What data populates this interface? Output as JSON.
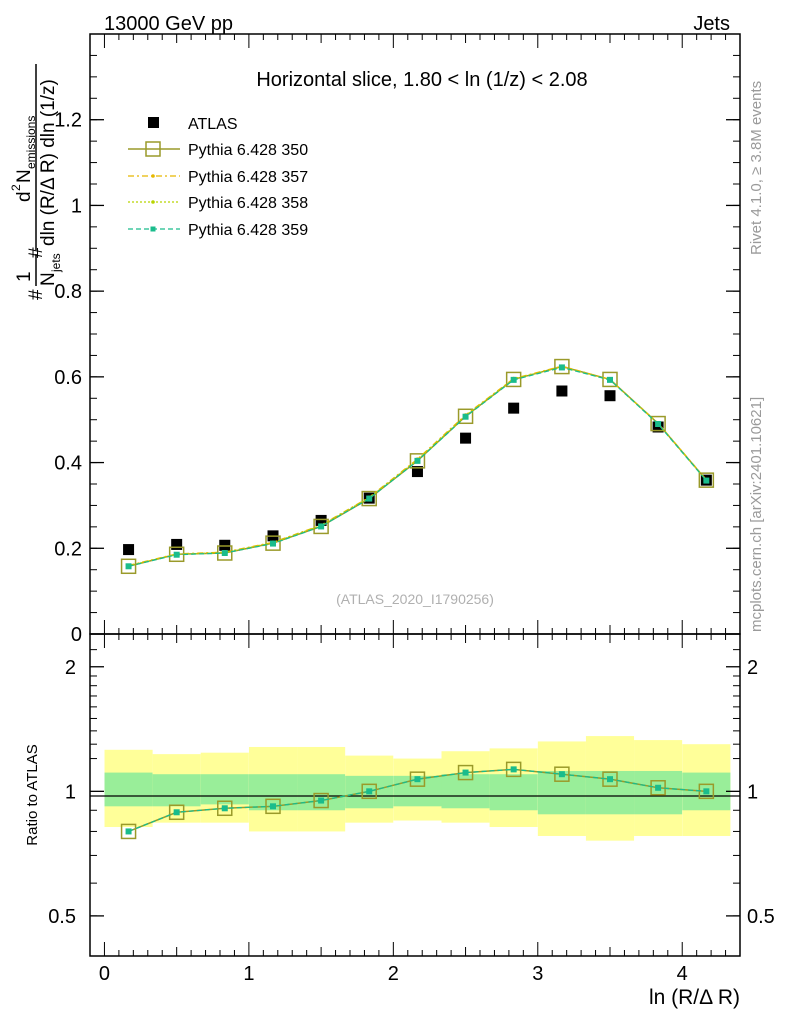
{
  "header": {
    "left": "13000 GeV pp",
    "right": "Jets"
  },
  "side": {
    "rivet": "Rivet 4.1.0, ≥ 3.8M events",
    "mcplots": "mcplots.cern.ch [arXiv:2401.10621]"
  },
  "chart_data": [
    {
      "type": "scatter",
      "title": "Horizontal slice, 1.80 < ln (1/z) < 2.08",
      "watermark": "(ATLAS_2020_I1790256)",
      "ylabel_parts": {
        "hash1": "#",
        "one": "1",
        "njets": "N",
        "jets_sub": "jets",
        "d2": "d",
        "sup2": "2",
        "nem": "N",
        "em_sub": "emissions",
        "hash2": "#",
        "denom": "dln (R/Δ R) dln (1/z)"
      },
      "xlabel": "ln (R/Δ R)",
      "xlim": [
        -0.1,
        4.4
      ],
      "ylim": [
        0,
        1.4
      ],
      "xticks": [
        "0",
        "1",
        "2",
        "3",
        "4"
      ],
      "yticks": [
        "0",
        "0.2",
        "0.4",
        "0.6",
        "0.8",
        "1",
        "1.2"
      ],
      "x": [
        0.167,
        0.5,
        0.833,
        1.167,
        1.5,
        1.833,
        2.167,
        2.5,
        2.833,
        3.167,
        3.5,
        3.833,
        4.167
      ],
      "series": [
        {
          "name": "ATLAS",
          "color": "#000000",
          "marker": "square",
          "values": [
            0.197,
            0.209,
            0.207,
            0.229,
            0.265,
            0.317,
            0.379,
            0.457,
            0.527,
            0.567,
            0.556,
            0.483,
            0.359
          ]
        },
        {
          "name": "Pythia 6.428 350",
          "color": "#9a9a2a",
          "marker": "open-square",
          "values": [
            0.158,
            0.186,
            0.189,
            0.212,
            0.251,
            0.316,
            0.404,
            0.508,
            0.594,
            0.624,
            0.594,
            0.491,
            0.359
          ]
        },
        {
          "name": "Pythia 6.428 357",
          "color": "#e6b800",
          "marker": "dot",
          "values": [
            0.16,
            0.187,
            0.191,
            0.214,
            0.254,
            0.319,
            0.408,
            0.511,
            0.596,
            0.625,
            0.594,
            0.492,
            0.36
          ]
        },
        {
          "name": "Pythia 6.428 358",
          "color": "#b8d400",
          "marker": "dot",
          "values": [
            0.159,
            0.186,
            0.19,
            0.213,
            0.253,
            0.318,
            0.406,
            0.509,
            0.595,
            0.623,
            0.593,
            0.491,
            0.359
          ]
        },
        {
          "name": "Pythia 6.428 359",
          "color": "#1abc8c",
          "marker": "small-square",
          "values": [
            0.158,
            0.185,
            0.189,
            0.211,
            0.251,
            0.316,
            0.404,
            0.507,
            0.593,
            0.622,
            0.593,
            0.49,
            0.358
          ]
        }
      ]
    },
    {
      "type": "scatter",
      "ylabel": "Ratio to ATLAS",
      "yscale": "log",
      "ylim": [
        0.4,
        2.4
      ],
      "yticks": [
        "0.5",
        "1",
        "2"
      ],
      "x": [
        0.167,
        0.5,
        0.833,
        1.167,
        1.5,
        1.833,
        2.167,
        2.5,
        2.833,
        3.167,
        3.5,
        3.833,
        4.167
      ],
      "band_inner": [
        [
          0.92,
          1.11
        ],
        [
          0.92,
          1.1
        ],
        [
          0.93,
          1.1
        ],
        [
          0.9,
          1.1
        ],
        [
          0.9,
          1.1
        ],
        [
          0.91,
          1.09
        ],
        [
          0.92,
          1.09
        ],
        [
          0.91,
          1.1
        ],
        [
          0.9,
          1.1
        ],
        [
          0.88,
          1.12
        ],
        [
          0.88,
          1.12
        ],
        [
          0.88,
          1.12
        ],
        [
          0.9,
          1.11
        ]
      ],
      "band_outer": [
        [
          0.82,
          1.26
        ],
        [
          0.84,
          1.23
        ],
        [
          0.84,
          1.24
        ],
        [
          0.8,
          1.28
        ],
        [
          0.8,
          1.28
        ],
        [
          0.84,
          1.22
        ],
        [
          0.85,
          1.2
        ],
        [
          0.84,
          1.25
        ],
        [
          0.82,
          1.27
        ],
        [
          0.78,
          1.32
        ],
        [
          0.76,
          1.36
        ],
        [
          0.78,
          1.33
        ],
        [
          0.78,
          1.3
        ]
      ],
      "series": [
        {
          "name": "Pythia 6.428 350",
          "color": "#9a9a2a",
          "marker": "open-square",
          "values": [
            0.8,
            0.89,
            0.91,
            0.92,
            0.95,
            1.0,
            1.07,
            1.11,
            1.13,
            1.1,
            1.07,
            1.02,
            1.0
          ]
        },
        {
          "name": "Pythia 6.428 359",
          "color": "#1abc8c",
          "marker": "small-square",
          "values": [
            0.8,
            0.89,
            0.91,
            0.92,
            0.95,
            1.0,
            1.07,
            1.11,
            1.13,
            1.1,
            1.07,
            1.02,
            1.0
          ]
        }
      ]
    }
  ]
}
